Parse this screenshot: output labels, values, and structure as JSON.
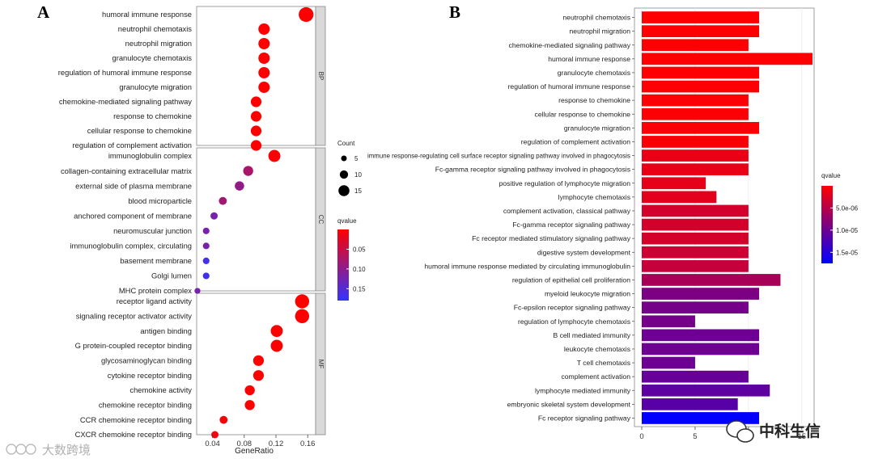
{
  "panel_a_label": "A",
  "panel_b_label": "B",
  "chart_data": [
    {
      "type": "scatter",
      "panel": "A",
      "xlabel": "GeneRatio",
      "xticks": [
        0.04,
        0.08,
        0.12,
        0.16
      ],
      "xlim": [
        0.02,
        0.17
      ],
      "size_legend": {
        "title": "Count",
        "values": [
          5,
          10,
          15
        ]
      },
      "color_legend": {
        "title": "qvalue",
        "ticks": [
          0.05,
          0.1,
          0.15
        ],
        "low_color": "#ff0000",
        "high_color": "#3333ff",
        "range": [
          0,
          0.18
        ]
      },
      "facets": [
        {
          "name": "BP",
          "categories": [
            {
              "label": "humoral immune response",
              "x": 0.158,
              "count": 16,
              "q": 0.0001
            },
            {
              "label": "neutrophil chemotaxis",
              "x": 0.105,
              "count": 11,
              "q": 0.0001
            },
            {
              "label": "neutrophil migration",
              "x": 0.105,
              "count": 11,
              "q": 0.0001
            },
            {
              "label": "granulocyte chemotaxis",
              "x": 0.105,
              "count": 11,
              "q": 0.0001
            },
            {
              "label": "regulation of humoral immune response",
              "x": 0.105,
              "count": 11,
              "q": 0.0001
            },
            {
              "label": "granulocyte migration",
              "x": 0.105,
              "count": 11,
              "q": 0.0001
            },
            {
              "label": "chemokine-mediated signaling pathway",
              "x": 0.095,
              "count": 10,
              "q": 0.0001
            },
            {
              "label": "response to chemokine",
              "x": 0.095,
              "count": 10,
              "q": 0.0001
            },
            {
              "label": "cellular response to chemokine",
              "x": 0.095,
              "count": 10,
              "q": 0.0001
            },
            {
              "label": "regulation of complement activation",
              "x": 0.095,
              "count": 10,
              "q": 0.0001
            }
          ]
        },
        {
          "name": "CC",
          "categories": [
            {
              "label": "immunoglobulin complex",
              "x": 0.118,
              "count": 12,
              "q": 0.003
            },
            {
              "label": "collagen-containing extracellular matrix",
              "x": 0.085,
              "count": 9,
              "q": 0.075
            },
            {
              "label": "external side of plasma membrane",
              "x": 0.074,
              "count": 8,
              "q": 0.095
            },
            {
              "label": "blood microparticle",
              "x": 0.053,
              "count": 6,
              "q": 0.08
            },
            {
              "label": "anchored component of membrane",
              "x": 0.042,
              "count": 5,
              "q": 0.12
            },
            {
              "label": "neuromuscular junction",
              "x": 0.032,
              "count": 4,
              "q": 0.12
            },
            {
              "label": "immunoglobulin complex, circulating",
              "x": 0.032,
              "count": 4,
              "q": 0.12
            },
            {
              "label": "basement membrane",
              "x": 0.032,
              "count": 4,
              "q": 0.165
            },
            {
              "label": "Golgi lumen",
              "x": 0.032,
              "count": 4,
              "q": 0.17
            },
            {
              "label": "MHC protein complex",
              "x": 0.021,
              "count": 3,
              "q": 0.12
            }
          ]
        },
        {
          "name": "MF",
          "categories": [
            {
              "label": "receptor ligand activity",
              "x": 0.153,
              "count": 15,
              "q": 0.0001
            },
            {
              "label": "signaling receptor activator activity",
              "x": 0.153,
              "count": 15,
              "q": 0.0001
            },
            {
              "label": "antigen binding",
              "x": 0.121,
              "count": 12,
              "q": 0.0001
            },
            {
              "label": "G protein-coupled receptor binding",
              "x": 0.121,
              "count": 12,
              "q": 0.0001
            },
            {
              "label": "glycosaminoglycan binding",
              "x": 0.098,
              "count": 10,
              "q": 0.0001
            },
            {
              "label": "cytokine receptor binding",
              "x": 0.098,
              "count": 10,
              "q": 0.0001
            },
            {
              "label": "chemokine activity",
              "x": 0.087,
              "count": 9,
              "q": 0.0001
            },
            {
              "label": "chemokine receptor binding",
              "x": 0.087,
              "count": 9,
              "q": 0.0001
            },
            {
              "label": "CCR chemokine receptor binding",
              "x": 0.054,
              "count": 6,
              "q": 0.005
            },
            {
              "label": "CXCR chemokine receptor binding",
              "x": 0.043,
              "count": 5,
              "q": 0.01
            }
          ]
        }
      ]
    },
    {
      "type": "bar",
      "panel": "B",
      "orientation": "horizontal",
      "xticks": [
        0,
        5,
        10,
        15
      ],
      "xlim": [
        0,
        16
      ],
      "color_legend": {
        "title": "qvalue",
        "ticks_text": [
          "5.0e-06",
          "1.0e-05",
          "1.5e-05"
        ],
        "ticks": [
          5e-06,
          1e-05,
          1.5e-05
        ],
        "low_color": "#ff0000",
        "high_color": "#0000ff",
        "range": [
          0,
          1.75e-05
        ]
      },
      "categories": [
        "neutrophil chemotaxis",
        "neutrophil migration",
        "chemokine-mediated signaling pathway",
        "humoral immune response",
        "granulocyte chemotaxis",
        "regulation of humoral immune response",
        "response to chemokine",
        "cellular response to chemokine",
        "granulocyte migration",
        "regulation of complement activation",
        "immune response-regulating cell surface receptor signaling pathway involved in phagocytosis",
        "Fc-gamma receptor signaling pathway involved in phagocytosis",
        "positive regulation of lymphocyte migration",
        "lymphocyte chemotaxis",
        "complement activation, classical pathway",
        "Fc-gamma receptor signaling pathway",
        "Fc receptor mediated stimulatory signaling pathway",
        "digestive system development",
        "humoral immune response mediated by circulating immunoglobulin",
        "regulation of epithelial cell proliferation",
        "myeloid leukocyte migration",
        "Fc-epsilon receptor signaling pathway",
        "regulation of lymphocyte chemotaxis",
        "B cell mediated immunity",
        "leukocyte chemotaxis",
        "T cell chemotaxis",
        "complement activation",
        "lymphocyte mediated immunity",
        "embryonic skeletal system development",
        "Fc receptor signaling pathway"
      ],
      "values": [
        11,
        11,
        10,
        16,
        11,
        11,
        10,
        10,
        11,
        10,
        10,
        10,
        6,
        7,
        10,
        10,
        10,
        10,
        10,
        13,
        11,
        10,
        5,
        11,
        11,
        5,
        10,
        12,
        9,
        11
      ],
      "qvalues": [
        1e-07,
        1e-07,
        2e-07,
        1e-07,
        2e-07,
        2e-07,
        3e-07,
        3e-07,
        3e-07,
        4e-07,
        1.5e-06,
        1.5e-06,
        1.7e-06,
        2e-06,
        3e-06,
        3e-06,
        3e-06,
        3.5e-06,
        4e-06,
        6e-06,
        9e-06,
        9.5e-06,
        9.5e-06,
        1e-05,
        1e-05,
        1e-05,
        1.05e-05,
        1.1e-05,
        1.15e-05,
        1.75e-05
      ]
    }
  ],
  "watermark_left": "大数跨境",
  "watermark_right": "中科生信"
}
